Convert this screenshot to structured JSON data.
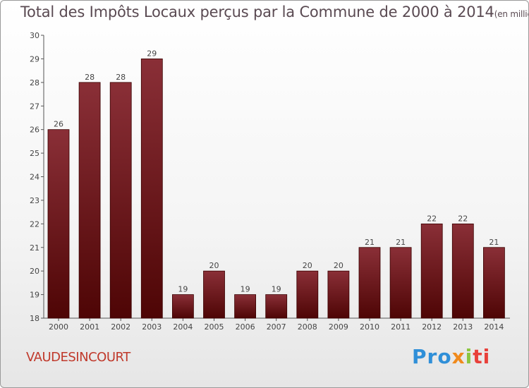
{
  "title": {
    "main": "Total des Impôts Locaux perçus par la Commune de 2000 à 2014",
    "unit": "(en milliers d'€)"
  },
  "commune": "VAUDESINCOURT",
  "brand": {
    "p1": "Pro",
    "p2": "x",
    "p3": "i",
    "p4": "ti"
  },
  "colors": {
    "bar_top": "#8a2f37",
    "bar_bottom": "#4e0505",
    "title": "#5a4a52",
    "commune": "#c0392b"
  },
  "chart_data": {
    "type": "bar",
    "categories": [
      "2000",
      "2001",
      "2002",
      "2003",
      "2004",
      "2005",
      "2006",
      "2007",
      "2008",
      "2009",
      "2010",
      "2011",
      "2012",
      "2013",
      "2014"
    ],
    "values": [
      26,
      28,
      28,
      29,
      19,
      20,
      19,
      19,
      20,
      20,
      21,
      21,
      22,
      22,
      21
    ],
    "ylim": [
      18,
      30
    ],
    "yticks": [
      18,
      19,
      20,
      21,
      22,
      23,
      24,
      25,
      26,
      27,
      28,
      29,
      30
    ],
    "grid": false
  }
}
